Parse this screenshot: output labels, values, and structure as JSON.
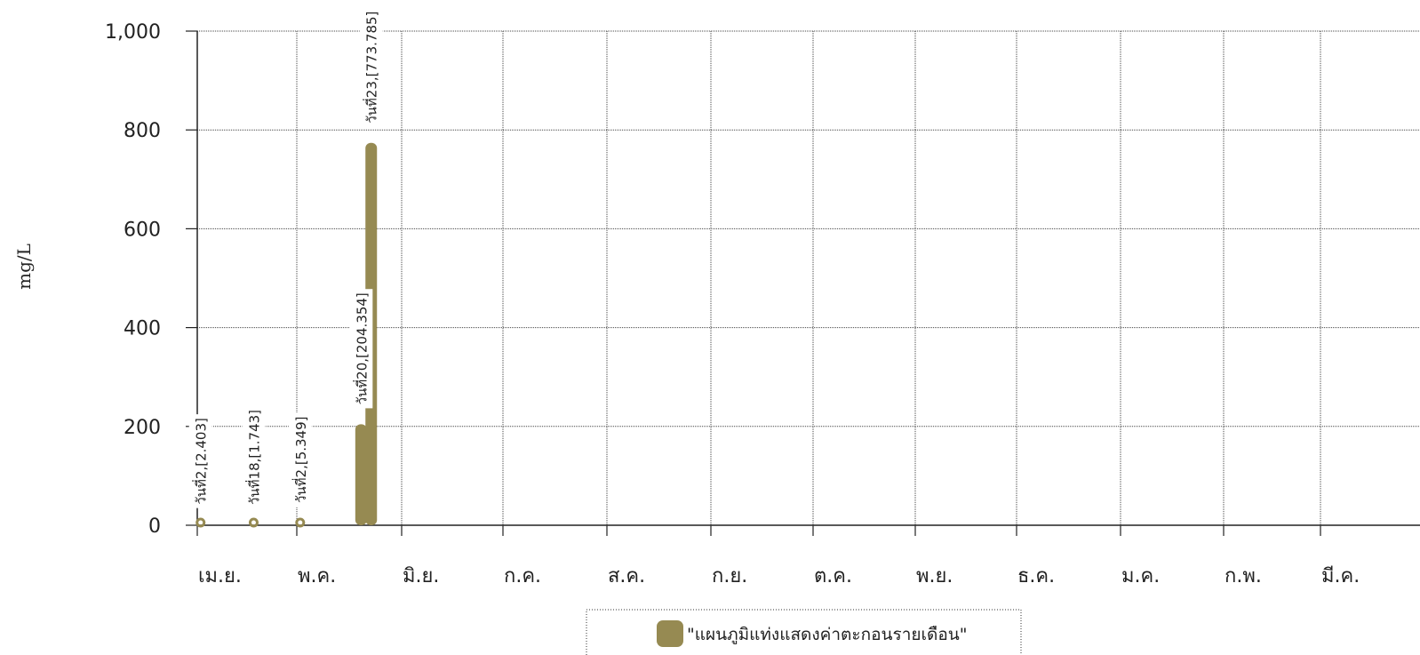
{
  "chart_data": {
    "type": "bar",
    "ylabel": "mg/L",
    "xlabel": "",
    "ylim": [
      0,
      1000
    ],
    "yticks": [
      0,
      200,
      400,
      600,
      800,
      1000
    ],
    "ytick_labels": [
      "0",
      "200",
      "400",
      "600",
      "800",
      "1,000"
    ],
    "grid": true,
    "legend_position": "bottom-center",
    "color": "#968a52",
    "months": [
      "เม.ย.",
      "พ.ค.",
      "มิ.ย.",
      "ก.ค.",
      "ส.ค.",
      "ก.ย.",
      "ต.ค.",
      "พ.ย.",
      "ธ.ค.",
      "ม.ค.",
      "ก.พ.",
      "มี.ค."
    ],
    "series": [
      {
        "name": "\"แผนภูมิแท่งแสดงค่าตะกอนรายเดือน\"",
        "points": [
          {
            "month": "เม.ย.",
            "day": 2,
            "value": 2.403,
            "label": "วันที่2,[2.403]"
          },
          {
            "month": "เม.ย.",
            "day": 18,
            "value": 1.743,
            "label": "วันที่18,[1.743]"
          },
          {
            "month": "พ.ค.",
            "day": 2,
            "value": 5.349,
            "label": "วันที่2,[5.349]"
          },
          {
            "month": "พ.ค.",
            "day": 20,
            "value": 204.354,
            "label": "วันที่20,[204.354]"
          },
          {
            "month": "พ.ค.",
            "day": 23,
            "value": 773.785,
            "label": "วันที่23,[773.785]"
          }
        ]
      }
    ]
  }
}
